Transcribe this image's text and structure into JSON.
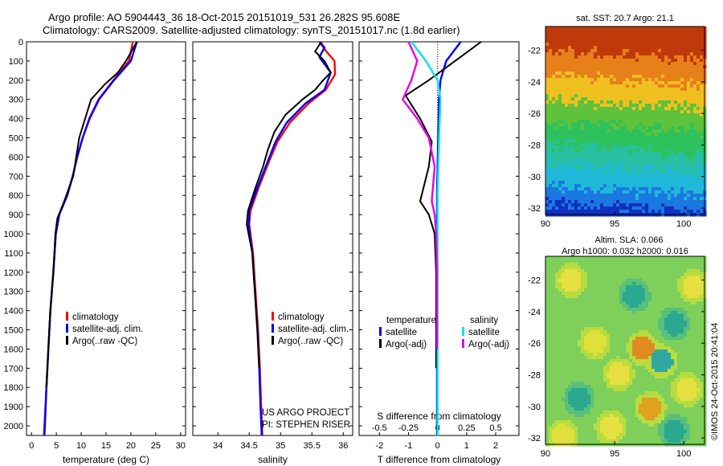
{
  "titles": {
    "line1": "Argo profile: AO 5904443_36 18-Oct-2015 20151019_531 26.282S 95.608E",
    "line2": "Climatology: CARS2009. Satellite-adjusted climatology: synTS_20151017.nc (1.8d earlier)"
  },
  "colors": {
    "climatology": "#ff0000",
    "satellite": "#0000ff",
    "argo": "#000000",
    "sal_satellite": "#00e5e5",
    "sal_argo": "#e600e6"
  },
  "chart_data": [
    {
      "type": "line",
      "name": "temperature-profile",
      "xlabel": "temperature (deg C)",
      "xlim": [
        -1,
        31
      ],
      "xticks": [
        "0",
        "5",
        "10",
        "15",
        "20",
        "25",
        "30"
      ],
      "ylim": [
        0,
        2050
      ],
      "yticks": [
        "0",
        "100",
        "200",
        "300",
        "400",
        "500",
        "600",
        "700",
        "800",
        "900",
        "1000",
        "1100",
        "1200",
        "1300",
        "1400",
        "1500",
        "1600",
        "1700",
        "1800",
        "1900",
        "2000"
      ],
      "legend": [
        "climatology",
        "satellite-adj. clim.",
        "Argo(..raw -QC)"
      ],
      "series": [
        {
          "name": "climatology",
          "color": "#ff0000",
          "points": [
            [
              20.4,
              0
            ],
            [
              19.6,
              100
            ],
            [
              16.5,
              200
            ],
            [
              13.5,
              300
            ],
            [
              11.6,
              400
            ],
            [
              10.3,
              500
            ],
            [
              9.2,
              600
            ],
            [
              8.3,
              700
            ],
            [
              7.2,
              800
            ],
            [
              5.6,
              900
            ],
            [
              4.9,
              1000
            ],
            [
              4.4,
              1200
            ],
            [
              3.8,
              1400
            ],
            [
              3.4,
              1600
            ],
            [
              3.0,
              1800
            ],
            [
              2.6,
              2000
            ],
            [
              2.5,
              2050
            ]
          ]
        },
        {
          "name": "satellite-adj. clim.",
          "color": "#0000ff",
          "points": [
            [
              21.2,
              0
            ],
            [
              20.0,
              100
            ],
            [
              16.6,
              200
            ],
            [
              13.6,
              300
            ],
            [
              11.7,
              400
            ],
            [
              10.3,
              500
            ],
            [
              9.2,
              600
            ],
            [
              8.3,
              700
            ],
            [
              7.2,
              800
            ],
            [
              5.6,
              900
            ],
            [
              4.9,
              1000
            ],
            [
              4.4,
              1200
            ],
            [
              3.8,
              1400
            ],
            [
              3.4,
              1600
            ],
            [
              3.0,
              1800
            ],
            [
              2.7,
              2000
            ],
            [
              2.6,
              2050
            ]
          ]
        },
        {
          "name": "Argo(..raw -QC)",
          "color": "#000000",
          "points": [
            [
              21.2,
              0
            ],
            [
              19.0,
              100
            ],
            [
              17.4,
              160
            ],
            [
              14.8,
              220
            ],
            [
              12.0,
              300
            ],
            [
              10.8,
              400
            ],
            [
              9.6,
              500
            ],
            [
              9.0,
              600
            ],
            [
              8.4,
              700
            ],
            [
              6.6,
              830
            ],
            [
              5.2,
              920
            ],
            [
              4.8,
              1000
            ],
            [
              4.4,
              1200
            ],
            [
              3.8,
              1400
            ],
            [
              3.4,
              1600
            ],
            [
              3.0,
              1800
            ]
          ]
        }
      ]
    },
    {
      "type": "line",
      "name": "salinity-profile",
      "xlabel": "salinity",
      "xlim": [
        33.6,
        36.15
      ],
      "xticks": [
        "34",
        "34.5",
        "35",
        "35.5",
        "36"
      ],
      "ylim": [
        0,
        2050
      ],
      "legend": [
        "climatology",
        "satellite-adj. clim.",
        "Argo(..raw -QC)"
      ],
      "annotations": [
        "US ARGO PROJECT",
        "PI: STEPHEN RISER"
      ],
      "series": [
        {
          "name": "climatology",
          "color": "#ff0000",
          "points": [
            [
              35.62,
              0
            ],
            [
              35.73,
              50
            ],
            [
              35.86,
              100
            ],
            [
              35.87,
              170
            ],
            [
              35.72,
              250
            ],
            [
              35.45,
              320
            ],
            [
              35.15,
              420
            ],
            [
              34.95,
              520
            ],
            [
              34.82,
              620
            ],
            [
              34.65,
              760
            ],
            [
              34.52,
              880
            ],
            [
              34.5,
              950
            ],
            [
              34.56,
              1100
            ],
            [
              34.6,
              1300
            ],
            [
              34.64,
              1500
            ],
            [
              34.67,
              1700
            ],
            [
              34.69,
              1900
            ],
            [
              34.71,
              2050
            ]
          ]
        },
        {
          "name": "satellite-adj. clim.",
          "color": "#0000ff",
          "points": [
            [
              35.63,
              0
            ],
            [
              35.7,
              30
            ],
            [
              35.62,
              80
            ],
            [
              35.8,
              160
            ],
            [
              35.7,
              250
            ],
            [
              35.4,
              320
            ],
            [
              35.1,
              420
            ],
            [
              34.92,
              520
            ],
            [
              34.8,
              620
            ],
            [
              34.63,
              760
            ],
            [
              34.5,
              880
            ],
            [
              34.49,
              950
            ],
            [
              34.55,
              1100
            ],
            [
              34.59,
              1300
            ],
            [
              34.63,
              1500
            ],
            [
              34.66,
              1700
            ],
            [
              34.68,
              1900
            ],
            [
              34.7,
              2050
            ]
          ]
        },
        {
          "name": "Argo(..raw -QC)",
          "color": "#000000",
          "points": [
            [
              35.65,
              0
            ],
            [
              35.55,
              50
            ],
            [
              35.7,
              100
            ],
            [
              35.8,
              160
            ],
            [
              35.68,
              200
            ],
            [
              35.55,
              250
            ],
            [
              35.35,
              300
            ],
            [
              35.08,
              380
            ],
            [
              34.9,
              470
            ],
            [
              34.8,
              560
            ],
            [
              34.72,
              650
            ],
            [
              34.6,
              760
            ],
            [
              34.48,
              880
            ],
            [
              34.46,
              950
            ],
            [
              34.55,
              1100
            ],
            [
              34.59,
              1300
            ],
            [
              34.63,
              1500
            ],
            [
              34.66,
              1700
            ]
          ]
        }
      ]
    },
    {
      "type": "line",
      "name": "difference-profile",
      "xlabel": "T difference from climatology",
      "xlabel_top": "S difference from climatology",
      "xlim": [
        -2.7,
        2.8
      ],
      "xticks": [
        "-2",
        "-1",
        "0",
        "1",
        "2"
      ],
      "xticks_top": [
        "-0.5",
        "-0.25",
        "0",
        "0.25",
        "0.5"
      ],
      "ylim": [
        0,
        2050
      ],
      "legend_titles": [
        "temperature",
        "salinity"
      ],
      "legend": [
        "satellite",
        "Argo(-adj)",
        "satellite",
        "Argo(-adj)"
      ],
      "series": [
        {
          "name": "T satellite",
          "color": "#0000ff",
          "points": [
            [
              0.8,
              0
            ],
            [
              0.3,
              100
            ],
            [
              0.1,
              200
            ],
            [
              0.05,
              300
            ],
            [
              0.02,
              500
            ],
            [
              -0.02,
              800
            ],
            [
              -0.02,
              1200
            ],
            [
              -0.02,
              1600
            ],
            [
              -0.02,
              2050
            ]
          ]
        },
        {
          "name": "T Argo(-adj)",
          "color": "#000000",
          "points": [
            [
              1.5,
              0
            ],
            [
              0.6,
              100
            ],
            [
              -0.3,
              200
            ],
            [
              -1.1,
              280
            ],
            [
              -0.6,
              400
            ],
            [
              -0.2,
              520
            ],
            [
              -0.3,
              650
            ],
            [
              -0.6,
              830
            ],
            [
              -0.3,
              900
            ],
            [
              -0.1,
              1000
            ],
            [
              -0.05,
              1200
            ],
            [
              -0.05,
              1500
            ],
            [
              -0.05,
              1700
            ]
          ]
        },
        {
          "name": "S satellite",
          "color": "#00e5e5",
          "points": [
            [
              -0.9,
              0
            ],
            [
              -0.4,
              100
            ],
            [
              0.0,
              200
            ],
            [
              0.1,
              300
            ],
            [
              0.05,
              500
            ],
            [
              0.0,
              800
            ],
            [
              0.0,
              1200
            ],
            [
              0.0,
              1600
            ],
            [
              0.0,
              2050
            ]
          ]
        },
        {
          "name": "S Argo(-adj)",
          "color": "#e600e6",
          "points": [
            [
              -1.0,
              0
            ],
            [
              -0.7,
              100
            ],
            [
              -0.9,
              200
            ],
            [
              -1.2,
              300
            ],
            [
              -0.7,
              400
            ],
            [
              -0.3,
              500
            ],
            [
              -0.1,
              650
            ],
            [
              -0.2,
              830
            ],
            [
              -0.1,
              900
            ],
            [
              -0.05,
              1000
            ],
            [
              -0.02,
              1200
            ],
            [
              -0.02,
              1600
            ]
          ]
        }
      ]
    },
    {
      "type": "heatmap",
      "name": "sst-map",
      "title": "sat. SST: 20.7 Argo: 21.1",
      "xticks": [
        "90",
        "95",
        "100"
      ],
      "yticks": [
        "-22",
        "-24",
        "-26",
        "-28",
        "-30",
        "-32"
      ],
      "xlim": [
        90,
        101.5
      ],
      "ylim": [
        -32.4,
        -20.5
      ]
    },
    {
      "type": "heatmap",
      "name": "sla-map",
      "title_lines": [
        "Altim. SLA: 0.066",
        "Argo h1000: 0.032 h2000: 0.016"
      ],
      "xticks": [
        "90",
        "95",
        "100"
      ],
      "yticks": [
        "-22",
        "-24",
        "-26",
        "-28",
        "-30",
        "-32"
      ],
      "xlim": [
        90,
        101.5
      ],
      "ylim": [
        -32.4,
        -20.5
      ],
      "side_label": "©IMOS 24-Oct-2015 20:41:04"
    }
  ]
}
